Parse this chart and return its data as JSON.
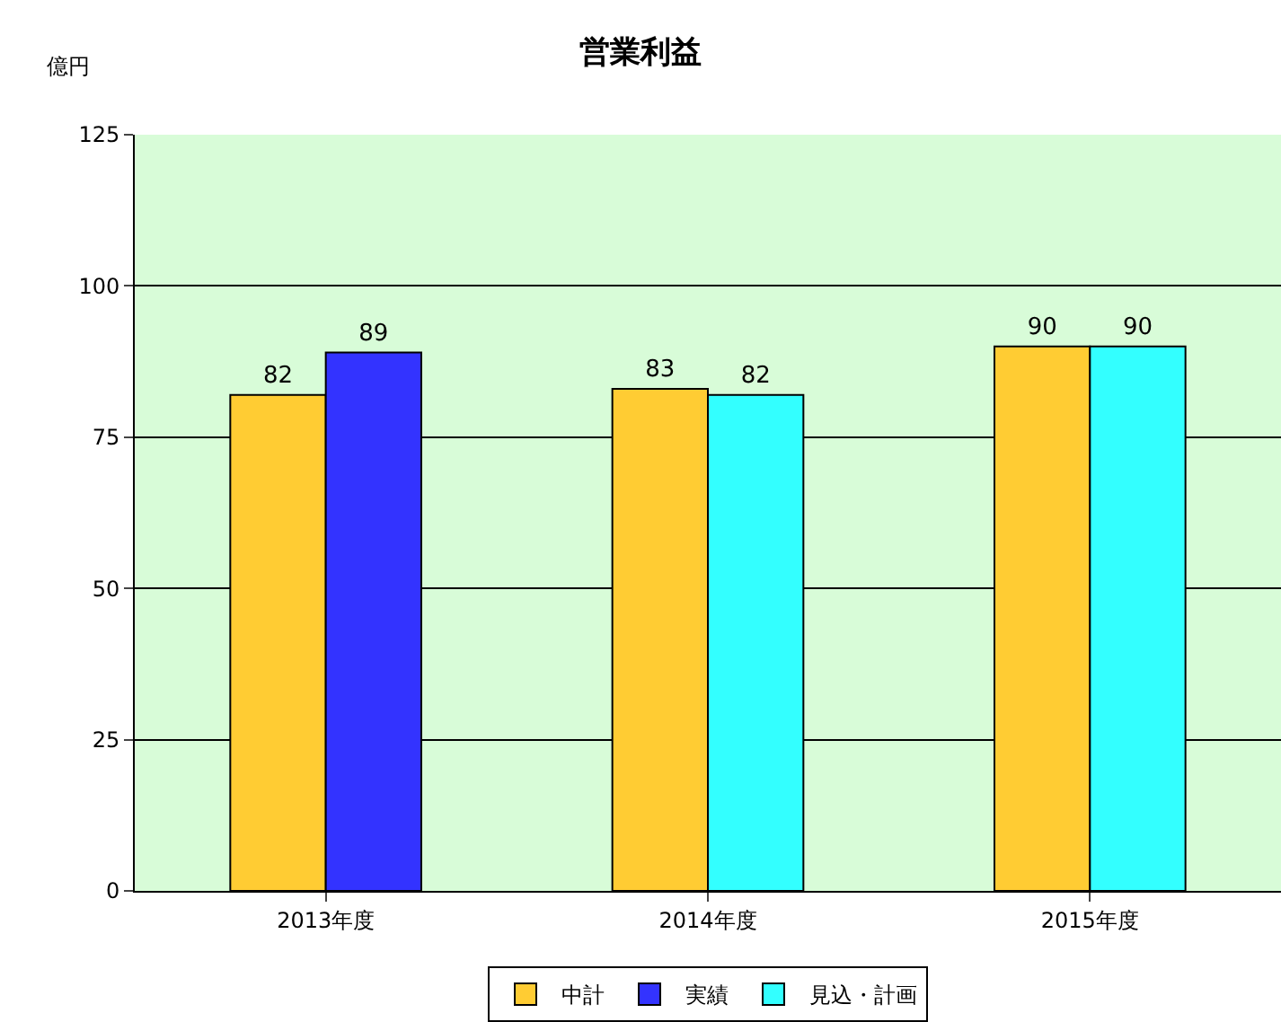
{
  "chart_data": {
    "type": "bar",
    "title": "営業利益",
    "ylabel": "億円",
    "categories": [
      "2013年度",
      "2014年度",
      "2015年度"
    ],
    "series": [
      {
        "name": "中計",
        "color": "#ffcc33",
        "values": [
          82,
          83,
          90
        ]
      },
      {
        "name": "実績",
        "color": "#3333ff",
        "values": [
          89,
          null,
          null
        ]
      },
      {
        "name": "見込・計画",
        "color": "#33ffff",
        "values": [
          null,
          82,
          90
        ]
      }
    ],
    "ylim": [
      0,
      125
    ],
    "yticks": [
      0,
      25,
      50,
      75,
      100,
      125
    ],
    "grid": "y",
    "legend": "bottom",
    "data_labels": true
  }
}
